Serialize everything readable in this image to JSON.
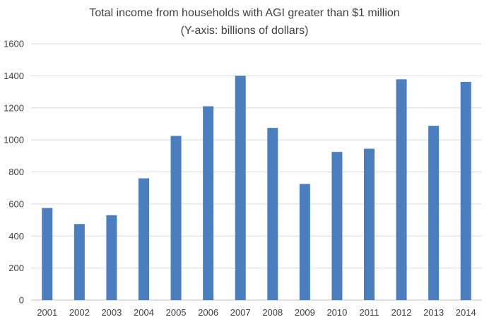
{
  "chart_data": {
    "type": "bar",
    "title": "Total income from households with AGI greater than $1 million",
    "subtitle": "(Y-axis: billions of dollars)",
    "xlabel": "",
    "ylabel": "",
    "categories": [
      "2001",
      "2002",
      "2003",
      "2004",
      "2005",
      "2006",
      "2007",
      "2008",
      "2009",
      "2010",
      "2011",
      "2012",
      "2013",
      "2014"
    ],
    "values": [
      575,
      475,
      530,
      760,
      1025,
      1210,
      1400,
      1075,
      725,
      925,
      945,
      1378,
      1088,
      1362
    ],
    "ylim": [
      0,
      1600
    ],
    "yticks": [
      0,
      200,
      400,
      600,
      800,
      1000,
      1200,
      1400,
      1600
    ],
    "grid": true,
    "legend": "none",
    "bar_color": "#4a7ebf",
    "grid_color": "#d9d9d9"
  }
}
